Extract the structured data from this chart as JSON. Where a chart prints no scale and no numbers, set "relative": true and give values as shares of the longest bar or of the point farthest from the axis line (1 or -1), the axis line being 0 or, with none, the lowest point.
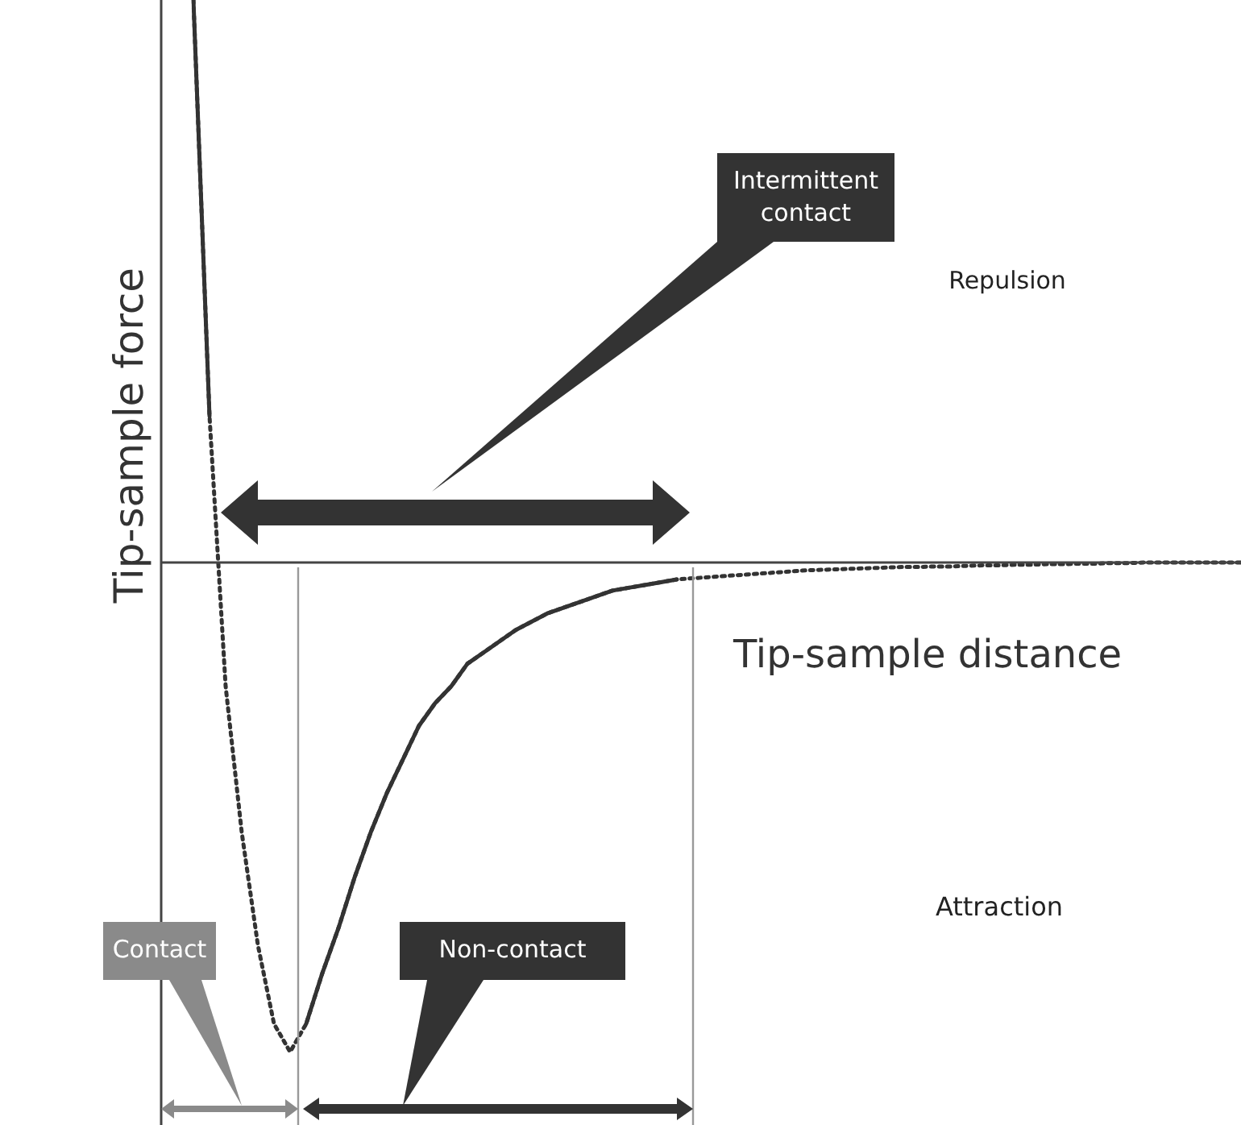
{
  "chart_data": {
    "type": "line",
    "relative": true,
    "xlabel": "Tip-sample distance",
    "ylabel": "Tip-sample force",
    "annotations": [
      "Intermittent contact",
      "Repulsion",
      "Attraction",
      "Contact",
      "Non-contact"
    ],
    "categories": [
      null,
      null,
      null,
      null,
      null,
      null,
      null,
      null,
      null,
      null,
      null,
      null,
      null,
      null,
      null,
      null,
      null,
      null,
      null,
      null,
      null,
      null,
      null,
      null,
      null,
      null,
      null,
      null,
      null,
      null,
      null,
      null,
      null,
      null,
      null,
      null,
      null,
      null,
      null,
      null,
      null,
      null,
      null,
      null,
      null,
      null,
      null,
      null,
      null,
      null,
      null,
      null,
      null,
      null,
      null,
      null,
      null,
      null,
      null,
      null,
      null,
      null,
      null,
      null,
      null,
      null
    ],
    "marker": "none",
    "series": [
      {
        "color": "#333333",
        "line_style": "dotted",
        "values": [
          1.0,
          0.26,
          -0.22,
          -0.48,
          -0.68,
          -0.82,
          -0.87,
          -0.82,
          -0.73,
          -0.65,
          -0.56,
          -0.48,
          -0.41,
          -0.35,
          -0.29,
          -0.25,
          -0.22,
          -0.18,
          -0.16,
          -0.14,
          -0.12,
          -0.105,
          -0.09,
          -0.08,
          -0.07,
          -0.06,
          -0.05,
          -0.045,
          -0.04,
          -0.035,
          -0.03,
          -0.028,
          -0.026,
          -0.024,
          -0.022,
          -0.02,
          -0.018,
          -0.016,
          -0.014,
          -0.013,
          -0.012,
          -0.011,
          -0.01,
          -0.009,
          -0.008,
          -0.008,
          -0.007,
          -0.007,
          -0.006,
          -0.005,
          -0.005,
          -0.004,
          -0.004,
          -0.003,
          -0.003,
          -0.002,
          -0.002,
          -0.001,
          -0.001,
          0,
          0,
          0,
          0,
          0,
          0,
          0
        ]
      },
      {
        "color": "#333333",
        "line_style": "solid",
        "values": [
          1.0,
          0.26,
          null,
          null,
          null,
          null,
          null,
          -0.82,
          -0.73,
          -0.65,
          -0.56,
          -0.48,
          -0.41,
          -0.35,
          -0.29,
          -0.25,
          -0.22,
          -0.18,
          -0.16,
          -0.14,
          -0.12,
          -0.105,
          -0.09,
          -0.08,
          -0.07,
          -0.06,
          -0.05,
          -0.045,
          -0.04,
          -0.035,
          -0.03,
          null,
          null,
          null,
          null,
          null,
          null,
          null,
          null,
          null,
          null,
          null,
          null,
          null,
          null,
          null,
          null,
          null,
          null,
          null,
          null,
          null,
          null,
          null,
          null,
          null,
          null,
          null,
          null,
          null,
          null,
          null,
          null,
          null,
          null,
          null
        ]
      }
    ]
  }
}
